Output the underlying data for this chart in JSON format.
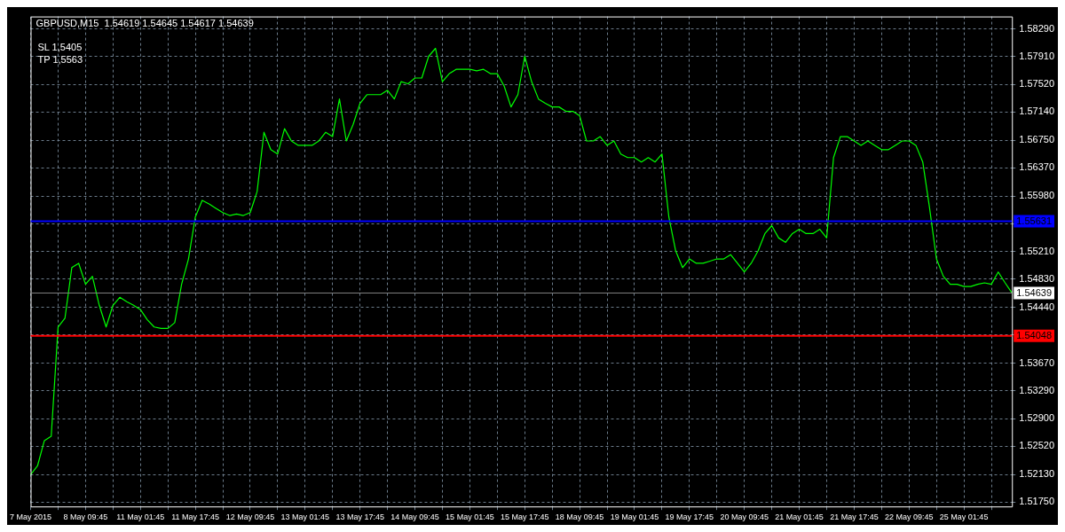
{
  "chart_data": {
    "type": "line",
    "title": "GBPUSD,M15  1.54619 1.54645 1.54617 1.54639",
    "annotations": [
      "SL 1,5405",
      "TP 1,5563"
    ],
    "categories": [
      "7 May 2015",
      null,
      null,
      null,
      null,
      null,
      null,
      null,
      "8 May 09:45",
      null,
      null,
      null,
      null,
      null,
      null,
      null,
      "11 May 01:45",
      null,
      null,
      null,
      null,
      null,
      null,
      null,
      "11 May 17:45",
      null,
      null,
      null,
      null,
      null,
      null,
      null,
      "12 May 09:45",
      null,
      null,
      null,
      null,
      null,
      null,
      null,
      "13 May 01:45",
      null,
      null,
      null,
      null,
      null,
      null,
      null,
      "13 May 17:45",
      null,
      null,
      null,
      null,
      null,
      null,
      null,
      "14 May 09:45",
      null,
      null,
      null,
      null,
      null,
      null,
      null,
      "15 May 01:45",
      null,
      null,
      null,
      null,
      null,
      null,
      null,
      "15 May 17:45",
      null,
      null,
      null,
      null,
      null,
      null,
      null,
      "18 May 09:45",
      null,
      null,
      null,
      null,
      null,
      null,
      null,
      "19 May 01:45",
      null,
      null,
      null,
      null,
      null,
      null,
      null,
      "19 May 17:45",
      null,
      null,
      null,
      null,
      null,
      null,
      null,
      "20 May 09:45",
      null,
      null,
      null,
      null,
      null,
      null,
      null,
      "21 May 01:45",
      null,
      null,
      null,
      null,
      null,
      null,
      null,
      "21 May 17:45",
      null,
      null,
      null,
      null,
      null,
      null,
      null,
      "22 May 09:45",
      null,
      null,
      null,
      null,
      null,
      null,
      null,
      "25 May 01:45",
      null,
      null,
      null,
      null,
      null,
      null,
      null
    ],
    "series": [
      {
        "color": "#00ff00",
        "values": [
          1.5213,
          1.5225,
          1.526,
          1.5266,
          1.5417,
          1.5429,
          1.5499,
          1.5505,
          1.5476,
          1.5487,
          1.5447,
          1.5417,
          1.5447,
          1.5458,
          1.5452,
          1.5447,
          1.5441,
          1.5427,
          1.5417,
          1.5415,
          1.5415,
          1.5423,
          1.5476,
          1.5511,
          1.5569,
          1.5592,
          1.5587,
          1.5581,
          1.5575,
          1.5571,
          1.5573,
          1.5571,
          1.5575,
          1.5604,
          1.5686,
          1.5662,
          1.5656,
          1.5691,
          1.5674,
          1.5668,
          1.5668,
          1.5668,
          1.5674,
          1.5686,
          1.568,
          1.5732,
          1.5674,
          1.5697,
          1.5726,
          1.5738,
          1.5738,
          1.5738,
          1.5744,
          1.5732,
          1.5756,
          1.5753,
          1.5761,
          1.5761,
          1.5791,
          1.5802,
          1.5756,
          1.5767,
          1.5773,
          1.5773,
          1.5773,
          1.5771,
          1.5773,
          1.5767,
          1.5767,
          1.575,
          1.5721,
          1.5738,
          1.5791,
          1.5756,
          1.5732,
          1.5726,
          1.5721,
          1.5721,
          1.5715,
          1.5715,
          1.5709,
          1.5674,
          1.5674,
          1.568,
          1.5668,
          1.5674,
          1.5656,
          1.5651,
          1.5651,
          1.5645,
          1.5651,
          1.5645,
          1.5656,
          1.5569,
          1.5522,
          1.5499,
          1.5511,
          1.5505,
          1.5505,
          1.5508,
          1.5511,
          1.5511,
          1.5517,
          1.5505,
          1.5493,
          1.5505,
          1.5522,
          1.5546,
          1.5557,
          1.554,
          1.5534,
          1.5546,
          1.5552,
          1.5546,
          1.5546,
          1.5552,
          1.554,
          1.5651,
          1.568,
          1.568,
          1.5674,
          1.5668,
          1.5674,
          1.5668,
          1.5662,
          1.5662,
          1.5668,
          1.5674,
          1.5674,
          1.5668,
          1.5645,
          1.5581,
          1.5511,
          1.5487,
          1.5476,
          1.5476,
          1.5473,
          1.5473,
          1.5476,
          1.5478,
          1.5476,
          1.5493,
          1.5478,
          1.5464
        ]
      }
    ],
    "ylim": [
      1.5169,
      1.5846
    ],
    "yticks": [
      {
        "value": 1.5829,
        "label": "1.58290"
      },
      {
        "value": 1.5791,
        "label": "1.57910"
      },
      {
        "value": 1.5752,
        "label": "1.57520"
      },
      {
        "value": 1.5714,
        "label": "1.57140"
      },
      {
        "value": 1.5675,
        "label": "1.56750"
      },
      {
        "value": 1.5637,
        "label": "1.56370"
      },
      {
        "value": 1.5598,
        "label": "1.55980"
      },
      {
        "value": 1.556,
        "label": null
      },
      {
        "value": 1.5521,
        "label": "1.55210"
      },
      {
        "value": 1.5483,
        "label": "1.54830"
      },
      {
        "value": 1.5444,
        "label": "1.54440"
      },
      {
        "value": 1.5406,
        "label": null
      },
      {
        "value": 1.5367,
        "label": "1.53670"
      },
      {
        "value": 1.5329,
        "label": "1.53290"
      },
      {
        "value": 1.529,
        "label": "1.52900"
      },
      {
        "value": 1.5252,
        "label": "1.52520"
      },
      {
        "value": 1.5213,
        "label": "1.52130"
      },
      {
        "value": 1.5175,
        "label": "1.51750"
      }
    ],
    "ref_lines": [
      {
        "axis": "y",
        "value": 1.55631,
        "label": "1.55631",
        "color": "#0000ff"
      },
      {
        "axis": "y",
        "value": 1.54048,
        "label": "1.54048",
        "color": "#ff0000"
      },
      {
        "axis": "y",
        "value": 1.54639,
        "label": "1.54639",
        "color": "#808080"
      }
    ],
    "grid": true,
    "legend": false
  }
}
